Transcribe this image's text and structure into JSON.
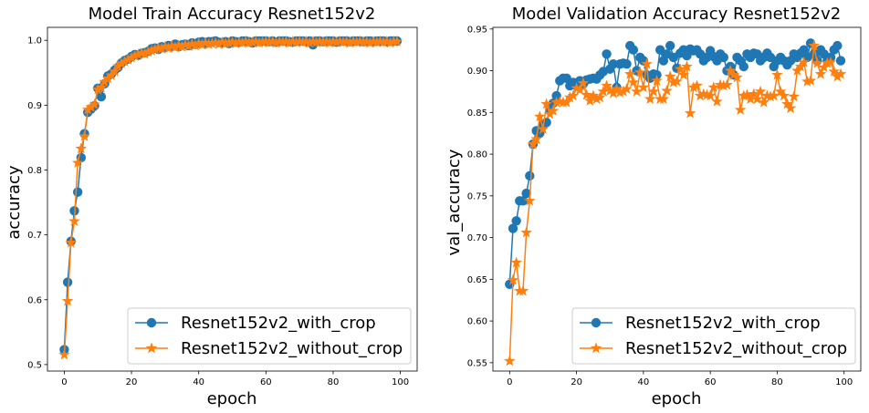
{
  "chart_data": [
    {
      "type": "line",
      "title": "Model Train Accuracy Resnet152v2",
      "xlabel": "epoch",
      "ylabel": "accuracy",
      "xlim": [
        -5,
        105
      ],
      "ylim": [
        0.49,
        1.02
      ],
      "xticks": [
        0,
        20,
        40,
        60,
        80,
        100
      ],
      "yticks": [
        0.5,
        0.6,
        0.7,
        0.8,
        0.9,
        1.0
      ],
      "xtick_labels": [
        "0",
        "20",
        "40",
        "60",
        "80",
        "100"
      ],
      "ytick_labels": [
        "0.5",
        "0.6",
        "0.7",
        "0.8",
        "0.9",
        "1.0"
      ],
      "legend_position": "lower-right",
      "x": [
        0,
        1,
        2,
        3,
        4,
        5,
        6,
        7,
        8,
        9,
        10,
        11,
        12,
        13,
        14,
        15,
        16,
        17,
        18,
        19,
        20,
        21,
        22,
        23,
        24,
        25,
        26,
        27,
        28,
        29,
        30,
        31,
        32,
        33,
        34,
        35,
        36,
        37,
        38,
        39,
        40,
        41,
        42,
        43,
        44,
        45,
        46,
        47,
        48,
        49,
        50,
        51,
        52,
        53,
        54,
        55,
        56,
        57,
        58,
        59,
        60,
        61,
        62,
        63,
        64,
        65,
        66,
        67,
        68,
        69,
        70,
        71,
        72,
        73,
        74,
        75,
        76,
        77,
        78,
        79,
        80,
        81,
        82,
        83,
        84,
        85,
        86,
        87,
        88,
        89,
        90,
        91,
        92,
        93,
        94,
        95,
        96,
        97,
        98,
        99
      ],
      "series": [
        {
          "name": "Resnet152v2_with_crop",
          "color": "#1f77b4",
          "marker": "circle",
          "values": [
            0.523,
            0.627,
            0.69,
            0.737,
            0.766,
            0.819,
            0.856,
            0.889,
            0.894,
            0.899,
            0.926,
            0.913,
            0.933,
            0.945,
            0.948,
            0.954,
            0.958,
            0.965,
            0.969,
            0.971,
            0.975,
            0.978,
            0.977,
            0.98,
            0.981,
            0.983,
            0.987,
            0.988,
            0.986,
            0.99,
            0.989,
            0.992,
            0.991,
            0.994,
            0.99,
            0.993,
            0.994,
            0.992,
            0.996,
            0.994,
            0.997,
            0.998,
            0.995,
            0.998,
            0.998,
            0.999,
            0.997,
            0.996,
            0.998,
            0.995,
            0.999,
            0.998,
            0.997,
            0.999,
            0.999,
            0.998,
            0.996,
            0.999,
            0.999,
            0.999,
            0.999,
            0.998,
            0.999,
            0.997,
            0.999,
            0.999,
            0.999,
            0.998,
            0.997,
            0.999,
            0.999,
            0.999,
            0.998,
            0.999,
            0.993,
            0.999,
            0.999,
            0.998,
            0.999,
            0.999,
            0.999,
            0.997,
            0.999,
            0.999,
            0.999,
            0.998,
            0.999,
            0.999,
            0.999,
            0.998,
            0.999,
            0.999,
            0.998,
            0.999,
            0.999,
            0.999,
            0.998,
            0.999,
            0.999,
            0.999
          ]
        },
        {
          "name": "Resnet152v2_without_crop",
          "color": "#ff7f0e",
          "marker": "star",
          "values": [
            0.515,
            0.598,
            0.688,
            0.721,
            0.811,
            0.833,
            0.852,
            0.893,
            0.897,
            0.901,
            0.924,
            0.927,
            0.936,
            0.941,
            0.946,
            0.952,
            0.96,
            0.964,
            0.967,
            0.97,
            0.973,
            0.976,
            0.978,
            0.98,
            0.979,
            0.982,
            0.984,
            0.986,
            0.988,
            0.987,
            0.99,
            0.988,
            0.991,
            0.989,
            0.992,
            0.99,
            0.993,
            0.991,
            0.994,
            0.992,
            0.995,
            0.993,
            0.996,
            0.994,
            0.995,
            0.996,
            0.994,
            0.997,
            0.995,
            0.996,
            0.997,
            0.995,
            0.997,
            0.996,
            0.998,
            0.996,
            0.997,
            0.998,
            0.996,
            0.997,
            0.998,
            0.997,
            0.998,
            0.996,
            0.998,
            0.997,
            0.998,
            0.996,
            0.998,
            0.997,
            0.998,
            0.997,
            0.998,
            0.996,
            0.998,
            0.997,
            0.998,
            0.997,
            0.998,
            0.996,
            0.998,
            0.997,
            0.998,
            0.997,
            0.998,
            0.996,
            0.998,
            0.997,
            0.998,
            0.997,
            0.998,
            0.996,
            0.998,
            0.997,
            0.998,
            0.997,
            0.998,
            0.996,
            0.998,
            0.998
          ]
        }
      ]
    },
    {
      "type": "line",
      "title": "Model Validation Accuracy Resnet152v2",
      "xlabel": "epoch",
      "ylabel": "val_accuracy",
      "xlim": [
        -5,
        105
      ],
      "ylim": [
        0.54,
        0.952
      ],
      "xticks": [
        0,
        20,
        40,
        60,
        80,
        100
      ],
      "yticks": [
        0.55,
        0.6,
        0.65,
        0.7,
        0.75,
        0.8,
        0.85,
        0.9,
        0.95
      ],
      "xtick_labels": [
        "0",
        "20",
        "40",
        "60",
        "80",
        "100"
      ],
      "ytick_labels": [
        "0.55",
        "0.60",
        "0.65",
        "0.70",
        "0.75",
        "0.80",
        "0.85",
        "0.90",
        "0.95"
      ],
      "legend_position": "lower-right",
      "x": [
        0,
        1,
        2,
        3,
        4,
        5,
        6,
        7,
        8,
        9,
        10,
        11,
        12,
        13,
        14,
        15,
        16,
        17,
        18,
        19,
        20,
        21,
        22,
        23,
        24,
        25,
        26,
        27,
        28,
        29,
        30,
        31,
        32,
        33,
        34,
        35,
        36,
        37,
        38,
        39,
        40,
        41,
        42,
        43,
        44,
        45,
        46,
        47,
        48,
        49,
        50,
        51,
        52,
        53,
        54,
        55,
        56,
        57,
        58,
        59,
        60,
        61,
        62,
        63,
        64,
        65,
        66,
        67,
        68,
        69,
        70,
        71,
        72,
        73,
        74,
        75,
        76,
        77,
        78,
        79,
        80,
        81,
        82,
        83,
        84,
        85,
        86,
        87,
        88,
        89,
        90,
        91,
        92,
        93,
        94,
        95,
        96,
        97,
        98,
        99
      ],
      "series": [
        {
          "name": "Resnet152v2_with_crop",
          "color": "#1f77b4",
          "marker": "circle",
          "values": [
            0.644,
            0.711,
            0.72,
            0.744,
            0.744,
            0.753,
            0.774,
            0.812,
            0.828,
            0.825,
            0.836,
            0.838,
            0.853,
            0.861,
            0.87,
            0.888,
            0.891,
            0.891,
            0.882,
            0.886,
            0.882,
            0.888,
            0.884,
            0.889,
            0.89,
            0.891,
            0.89,
            0.895,
            0.899,
            0.92,
            0.902,
            0.908,
            0.88,
            0.908,
            0.909,
            0.908,
            0.93,
            0.925,
            0.9,
            0.916,
            0.912,
            0.895,
            0.891,
            0.896,
            0.895,
            0.925,
            0.912,
            0.92,
            0.93,
            0.916,
            0.903,
            0.921,
            0.925,
            0.918,
            0.926,
            0.924,
            0.925,
            0.92,
            0.912,
            0.916,
            0.924,
            0.917,
            0.912,
            0.92,
            0.916,
            0.9,
            0.905,
            0.895,
            0.916,
            0.912,
            0.905,
            0.92,
            0.916,
            0.921,
            0.92,
            0.912,
            0.916,
            0.921,
            0.916,
            0.905,
            0.912,
            0.916,
            0.912,
            0.907,
            0.912,
            0.92,
            0.916,
            0.921,
            0.925,
            0.916,
            0.933,
            0.92,
            0.912,
            0.925,
            0.92,
            0.912,
            0.916,
            0.925,
            0.93,
            0.912
          ]
        },
        {
          "name": "Resnet152v2_without_crop",
          "color": "#ff7f0e",
          "marker": "star",
          "values": [
            0.552,
            0.649,
            0.67,
            0.636,
            0.636,
            0.706,
            0.744,
            0.812,
            0.818,
            0.845,
            0.83,
            0.86,
            0.848,
            0.852,
            0.862,
            0.863,
            0.862,
            0.862,
            0.868,
            0.87,
            0.879,
            0.877,
            0.885,
            0.871,
            0.864,
            0.87,
            0.866,
            0.868,
            0.875,
            0.882,
            0.876,
            0.873,
            0.878,
            0.874,
            0.875,
            0.878,
            0.896,
            0.886,
            0.875,
            0.898,
            0.88,
            0.908,
            0.866,
            0.875,
            0.888,
            0.866,
            0.866,
            0.876,
            0.893,
            0.886,
            0.887,
            0.902,
            0.895,
            0.905,
            0.849,
            0.88,
            0.882,
            0.87,
            0.872,
            0.871,
            0.87,
            0.88,
            0.863,
            0.883,
            0.882,
            0.883,
            0.9,
            0.895,
            0.892,
            0.853,
            0.87,
            0.871,
            0.866,
            0.872,
            0.866,
            0.875,
            0.862,
            0.87,
            0.869,
            0.87,
            0.895,
            0.875,
            0.87,
            0.86,
            0.855,
            0.869,
            0.9,
            0.905,
            0.91,
            0.887,
            0.888,
            0.93,
            0.909,
            0.896,
            0.904,
            0.909,
            0.91,
            0.899,
            0.893,
            0.896
          ]
        }
      ]
    }
  ]
}
